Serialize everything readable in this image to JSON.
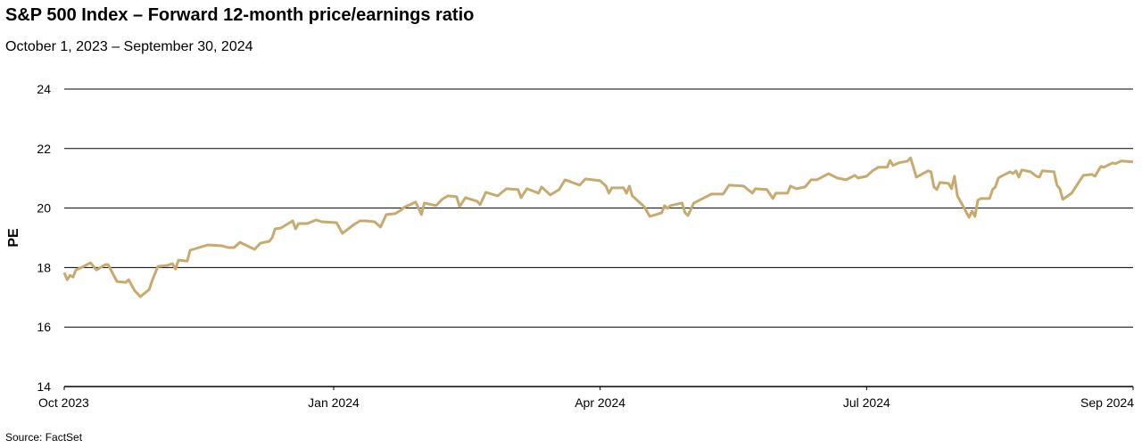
{
  "title": "S&P 500 Index – Forward 12-month price/earnings ratio",
  "subtitle": "October 1, 2023 – September 30, 2024",
  "source": "Source: FactSet",
  "chart_data": {
    "type": "line",
    "title": "S&P 500 Index – Forward 12-month price/earnings ratio",
    "subtitle": "October 1, 2023 – September 30, 2024",
    "xlabel": "",
    "ylabel": "PE",
    "xlim": [
      "2023-10-01",
      "2024-09-30"
    ],
    "ylim": [
      14,
      24
    ],
    "yticks": [
      14,
      16,
      18,
      20,
      22,
      24
    ],
    "xticks": [
      {
        "date": "2023-10-01",
        "label": "Oct 2023"
      },
      {
        "date": "2024-01-01",
        "label": "Jan 2024"
      },
      {
        "date": "2024-04-01",
        "label": "Apr 2024"
      },
      {
        "date": "2024-07-01",
        "label": "Jul 2024"
      },
      {
        "date": "2024-09-30",
        "label": "Sep 2024"
      }
    ],
    "grid": "horizontal",
    "legend": "none",
    "line_color": "#c8aa6e",
    "series": [
      {
        "x": [
          "2023-10-01",
          "2023-10-02",
          "2023-10-03",
          "2023-10-04",
          "2023-10-05",
          "2023-10-07",
          "2023-10-10",
          "2023-10-12",
          "2023-10-15",
          "2023-10-16",
          "2023-10-19",
          "2023-10-22",
          "2023-10-23",
          "2023-10-25",
          "2023-10-27",
          "2023-10-30",
          "2023-10-31",
          "2023-11-02",
          "2023-11-05",
          "2023-11-07",
          "2023-11-08",
          "2023-11-09",
          "2023-11-12",
          "2023-11-13",
          "2023-11-16",
          "2023-11-19",
          "2023-11-24",
          "2023-11-26",
          "2023-11-28",
          "2023-11-30",
          "2023-12-05",
          "2023-12-07",
          "2023-12-10",
          "2023-12-11",
          "2023-12-12",
          "2023-12-14",
          "2023-12-18",
          "2023-12-19",
          "2023-12-20",
          "2023-12-23",
          "2023-12-26",
          "2023-12-28",
          "2024-01-02",
          "2024-01-04",
          "2024-01-08",
          "2024-01-10",
          "2024-01-12",
          "2024-01-15",
          "2024-01-17",
          "2024-01-19",
          "2024-01-22",
          "2024-01-24",
          "2024-01-25",
          "2024-01-29",
          "2024-01-31",
          "2024-02-01",
          "2024-02-05",
          "2024-02-07",
          "2024-02-09",
          "2024-02-12",
          "2024-02-13",
          "2024-02-15",
          "2024-02-19",
          "2024-02-20",
          "2024-02-22",
          "2024-02-26",
          "2024-02-29",
          "2024-03-04",
          "2024-03-05",
          "2024-03-07",
          "2024-03-11",
          "2024-03-12",
          "2024-03-15",
          "2024-03-18",
          "2024-03-20",
          "2024-03-25",
          "2024-03-27",
          "2024-04-01",
          "2024-04-03",
          "2024-04-04",
          "2024-04-05",
          "2024-04-09",
          "2024-04-10",
          "2024-04-11",
          "2024-04-12",
          "2024-04-16",
          "2024-04-18",
          "2024-04-22",
          "2024-04-23",
          "2024-04-24",
          "2024-04-25",
          "2024-04-29",
          "2024-04-30",
          "2024-05-01",
          "2024-05-03",
          "2024-05-06",
          "2024-05-09",
          "2024-05-13",
          "2024-05-15",
          "2024-05-20",
          "2024-05-23",
          "2024-05-24",
          "2024-05-28",
          "2024-05-30",
          "2024-05-31",
          "2024-06-04",
          "2024-06-05",
          "2024-06-07",
          "2024-06-10",
          "2024-06-12",
          "2024-06-14",
          "2024-06-18",
          "2024-06-21",
          "2024-06-24",
          "2024-06-27",
          "2024-06-28",
          "2024-07-01",
          "2024-07-03",
          "2024-07-05",
          "2024-07-08",
          "2024-07-09",
          "2024-07-10",
          "2024-07-12",
          "2024-07-15",
          "2024-07-16",
          "2024-07-17",
          "2024-07-18",
          "2024-07-22",
          "2024-07-23",
          "2024-07-24",
          "2024-07-25",
          "2024-07-26",
          "2024-07-29",
          "2024-07-30",
          "2024-07-31",
          "2024-08-01",
          "2024-08-05",
          "2024-08-06",
          "2024-08-07",
          "2024-08-08",
          "2024-08-09",
          "2024-08-12",
          "2024-08-13",
          "2024-08-14",
          "2024-08-15",
          "2024-08-16",
          "2024-08-19",
          "2024-08-20",
          "2024-08-21",
          "2024-08-22",
          "2024-08-23",
          "2024-08-26",
          "2024-08-28",
          "2024-08-29",
          "2024-08-30",
          "2024-09-03",
          "2024-09-04",
          "2024-09-05",
          "2024-09-06",
          "2024-09-09",
          "2024-09-11",
          "2024-09-13",
          "2024-09-16",
          "2024-09-17",
          "2024-09-19",
          "2024-09-20",
          "2024-09-23",
          "2024-09-24",
          "2024-09-26",
          "2024-09-30"
        ],
        "y": [
          17.83,
          17.59,
          17.74,
          17.68,
          17.92,
          18.01,
          18.16,
          17.92,
          18.1,
          18.1,
          17.53,
          17.5,
          17.59,
          17.23,
          17.02,
          17.26,
          17.56,
          18.04,
          18.07,
          18.13,
          17.95,
          18.25,
          18.22,
          18.58,
          18.67,
          18.76,
          18.73,
          18.67,
          18.67,
          18.85,
          18.61,
          18.82,
          18.88,
          19.0,
          19.3,
          19.33,
          19.57,
          19.3,
          19.48,
          19.48,
          19.6,
          19.54,
          19.51,
          19.15,
          19.45,
          19.57,
          19.57,
          19.54,
          19.36,
          19.78,
          19.81,
          19.93,
          20.02,
          20.2,
          19.78,
          20.17,
          20.08,
          20.29,
          20.41,
          20.38,
          20.05,
          20.35,
          20.23,
          20.11,
          20.53,
          20.41,
          20.65,
          20.62,
          20.35,
          20.65,
          20.5,
          20.71,
          20.44,
          20.62,
          20.95,
          20.77,
          20.98,
          20.92,
          20.74,
          20.5,
          20.68,
          20.68,
          20.5,
          20.74,
          20.41,
          20.05,
          19.72,
          19.84,
          20.08,
          19.99,
          20.08,
          20.17,
          19.84,
          19.75,
          20.17,
          20.32,
          20.47,
          20.47,
          20.77,
          20.74,
          20.5,
          20.65,
          20.62,
          20.32,
          20.5,
          20.5,
          20.74,
          20.65,
          20.71,
          20.95,
          20.95,
          21.16,
          21.01,
          20.95,
          21.1,
          21.01,
          21.07,
          21.25,
          21.37,
          21.37,
          21.6,
          21.43,
          21.52,
          21.58,
          21.69,
          21.37,
          21.04,
          21.25,
          21.22,
          20.71,
          20.62,
          20.86,
          20.83,
          20.65,
          21.07,
          20.41,
          19.69,
          19.9,
          19.72,
          20.26,
          20.32,
          20.32,
          20.62,
          20.71,
          21.01,
          21.07,
          21.22,
          21.16,
          21.25,
          21.04,
          21.28,
          21.22,
          21.07,
          21.04,
          21.25,
          21.22,
          20.77,
          20.65,
          20.29,
          20.5,
          20.8,
          21.1,
          21.13,
          21.07,
          21.4,
          21.37,
          21.52,
          21.49,
          21.58,
          21.55
        ]
      }
    ]
  }
}
